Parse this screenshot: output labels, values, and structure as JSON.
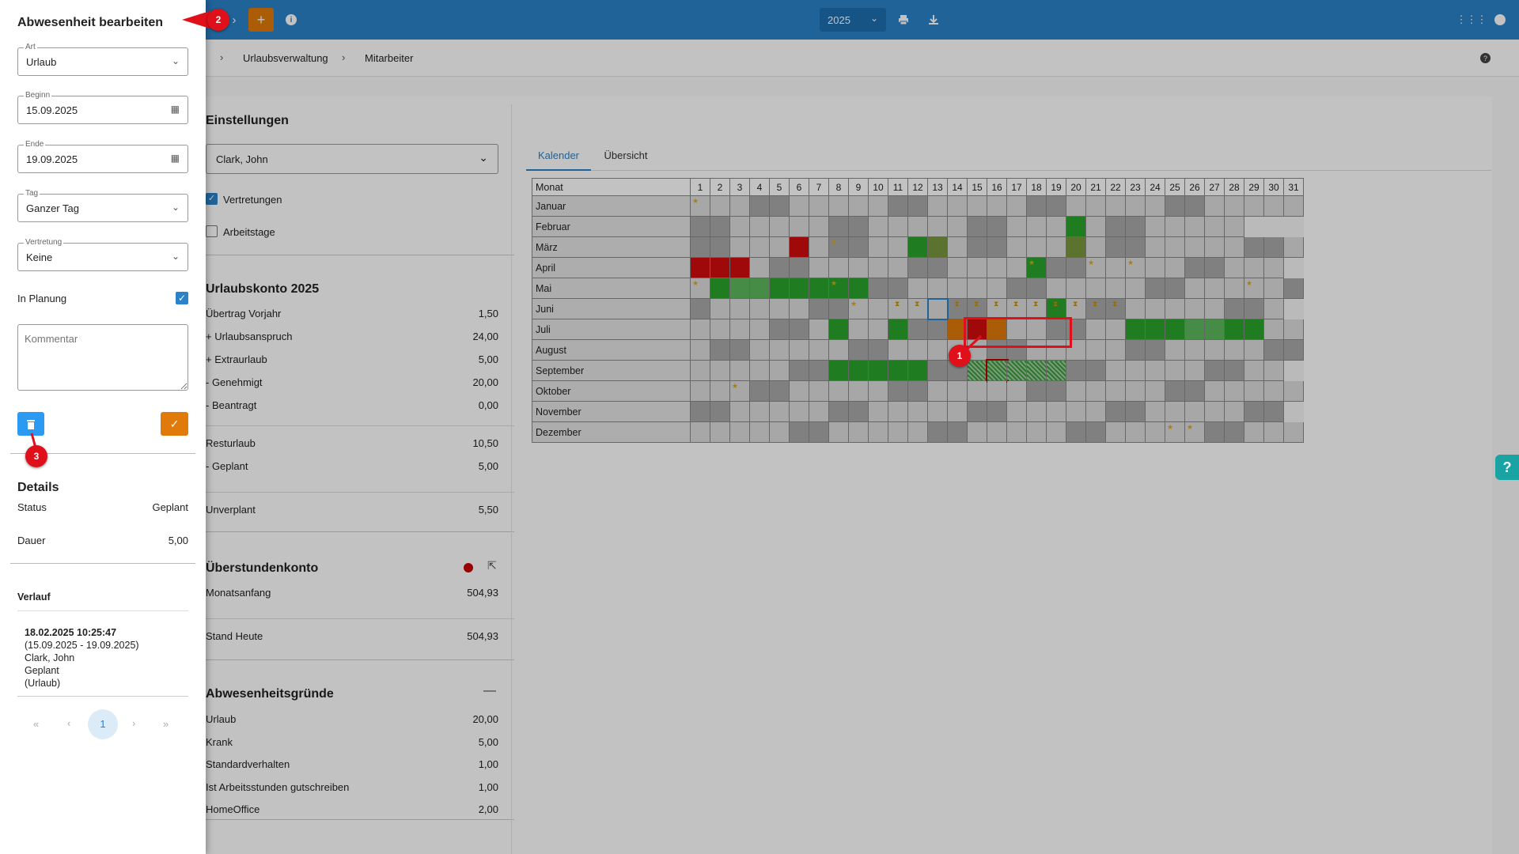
{
  "topbar": {
    "year": "2025",
    "colors": {
      "bar": "#2b82c9",
      "add_button": "#e07a0a"
    }
  },
  "breadcrumb": [
    "Urlaubsverwaltung",
    "Mitarbeiter"
  ],
  "settings": {
    "title": "Einstellungen",
    "employee": "Clark, John",
    "substitutions_label": "Vertretungen",
    "workdays_label": "Arbeitstage"
  },
  "vacation_account": {
    "title": "Urlaubskonto 2025",
    "rows": [
      {
        "label": "Übertrag Vorjahr",
        "value": "1,50"
      },
      {
        "label": "+ Urlaubsanspruch",
        "value": "24,00"
      },
      {
        "label": "+ Extraurlaub",
        "value": "5,00"
      },
      {
        "label": "- Genehmigt",
        "value": "20,00"
      },
      {
        "label": "- Beantragt",
        "value": "0,00"
      }
    ],
    "rows2": [
      {
        "label": "Resturlaub",
        "value": "10,50"
      },
      {
        "label": "- Geplant",
        "value": "5,00"
      }
    ],
    "rows3": [
      {
        "label": "Unverplant",
        "value": "5,50"
      }
    ]
  },
  "overtime": {
    "title": "Überstundenkonto",
    "month_start_label": "Monatsanfang",
    "month_start_value": "504,93",
    "today_label": "Stand Heute",
    "today_value": "504,93"
  },
  "reasons": {
    "title": "Abwesenheitsgründe",
    "rows": [
      {
        "label": "Urlaub",
        "value": "20,00"
      },
      {
        "label": "Krank",
        "value": "5,00"
      },
      {
        "label": "Standardverhalten",
        "value": "1,00"
      },
      {
        "label": "Ist Arbeitsstunden gutschreiben",
        "value": "1,00"
      },
      {
        "label": "HomeOffice",
        "value": "2,00"
      }
    ]
  },
  "tabs": [
    {
      "label": "Kalender",
      "active": true
    },
    {
      "label": "Übersicht",
      "active": false
    }
  ],
  "calendar": {
    "header_label": "Monat",
    "months": [
      "Januar",
      "Februar",
      "März",
      "April",
      "Mai",
      "Juni",
      "Juli",
      "August",
      "September",
      "Oktober",
      "November",
      "Dezember"
    ]
  },
  "panel": {
    "title": "Abwesenheit bearbeiten",
    "fields": {
      "type_label": "Art",
      "type_value": "Urlaub",
      "begin_label": "Beginn",
      "begin_value": "15.09.2025",
      "end_label": "Ende",
      "end_value": "19.09.2025",
      "day_label": "Tag",
      "day_value": "Ganzer Tag",
      "sub_label": "Vertretung",
      "sub_value": "Keine"
    },
    "planning_label": "In Planung",
    "planning_checked": true,
    "comment_placeholder": "Kommentar",
    "details": {
      "title": "Details",
      "status_label": "Status",
      "status_value": "Geplant",
      "duration_label": "Dauer",
      "duration_value": "5,00"
    },
    "history": {
      "title": "Verlauf",
      "entry": {
        "timestamp": "18.02.2025 10:25:47",
        "range": "(15.09.2025 - 19.09.2025)",
        "name": "Clark, John",
        "status": "Geplant",
        "type": "(Urlaub)"
      }
    },
    "pagination": {
      "first": "«",
      "prev": "‹",
      "current": "1",
      "next": "›",
      "last": "»"
    }
  },
  "markers": [
    "1",
    "2",
    "3"
  ]
}
